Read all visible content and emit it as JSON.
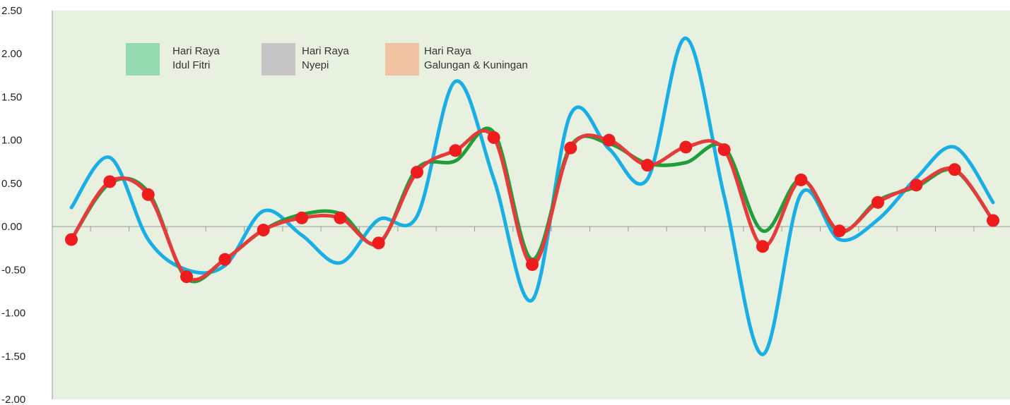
{
  "chart_data": {
    "type": "line",
    "title": "",
    "xlabel": "",
    "ylabel": "",
    "ylim": [
      -2.0,
      2.5
    ],
    "y_ticks": [
      "2.50",
      "2.00",
      "1.50",
      "1.00",
      "0.50",
      "0.00",
      "-0.50",
      "-1.00",
      "-1.50",
      "-2.00"
    ],
    "y_tick_values": [
      2.5,
      2.0,
      1.5,
      1.0,
      0.5,
      0.0,
      -0.5,
      -1.0,
      -1.5,
      -2.0
    ],
    "x_count": 25,
    "grid": false,
    "plot_background": "#e8f1df",
    "legend": {
      "placement": "top-left",
      "entries": [
        {
          "line1": "Hari Raya",
          "line2": "Idul Fitri",
          "color": "#94d9b0"
        },
        {
          "line1": "Hari Raya",
          "line2": "Nyepi",
          "color": "#c6c6c6"
        },
        {
          "line1": "Hari Raya",
          "line2": "Galungan & Kuningan",
          "color": "#f0c3a2"
        }
      ]
    },
    "series": [
      {
        "color": "#1aaee6",
        "values": [
          0.22,
          0.8,
          -0.15,
          -0.5,
          -0.45,
          0.18,
          -0.1,
          -0.42,
          0.08,
          0.12,
          1.68,
          0.55,
          -0.85,
          1.3,
          0.9,
          0.55,
          2.18,
          0.35,
          -1.48,
          0.38,
          -0.15,
          0.08,
          0.56,
          0.92,
          0.28
        ]
      },
      {
        "color": "#1f9e3a",
        "values": [
          -0.15,
          0.5,
          0.4,
          -0.6,
          -0.38,
          -0.04,
          0.14,
          0.15,
          -0.2,
          0.67,
          0.76,
          1.09,
          -0.38,
          0.93,
          0.96,
          0.73,
          0.74,
          0.92,
          -0.05,
          0.55,
          -0.06,
          0.3,
          0.46,
          0.65,
          0.07
        ]
      },
      {
        "color": "#e63b3b",
        "values": [
          -0.15,
          0.52,
          0.37,
          -0.58,
          -0.38,
          -0.04,
          0.1,
          0.1,
          -0.19,
          0.63,
          0.88,
          1.03,
          -0.44,
          0.91,
          1.0,
          0.71,
          0.92,
          0.89,
          -0.23,
          0.54,
          -0.05,
          0.28,
          0.48,
          0.66,
          0.07
        ],
        "markers": true,
        "marker_color": "#ee1c1c"
      }
    ]
  }
}
